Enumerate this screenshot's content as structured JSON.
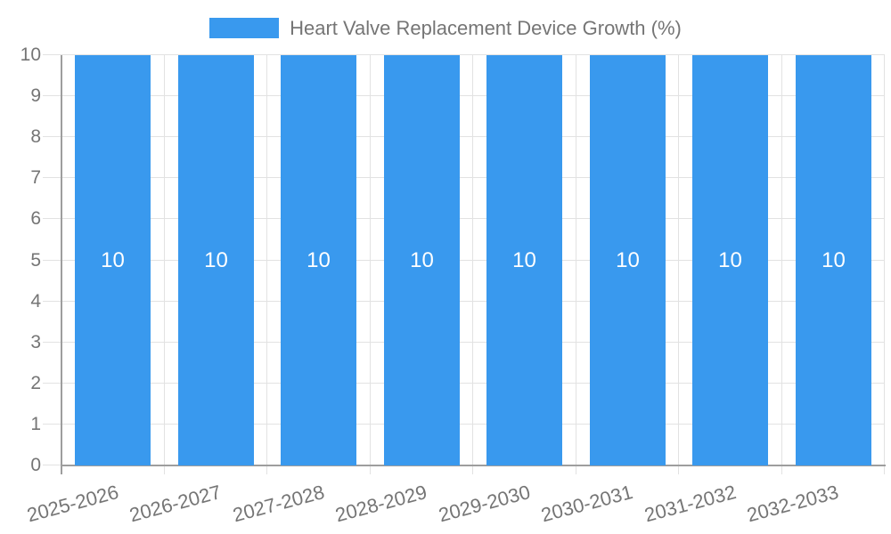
{
  "legend": {
    "label": "Heart Valve Replacement Device Growth (%)",
    "swatch_color": "#3999EE"
  },
  "chart_data": {
    "type": "bar",
    "title": "Heart Valve Replacement Device Growth (%)",
    "categories": [
      "2025-2026",
      "2026-2027",
      "2027-2028",
      "2028-2029",
      "2029-2030",
      "2030-2031",
      "2031-2032",
      "2032-2033"
    ],
    "series": [
      {
        "name": "Heart Valve Replacement Device Growth (%)",
        "values": [
          10,
          10,
          10,
          10,
          10,
          10,
          10,
          10
        ]
      }
    ],
    "bar_value_labels": [
      "10",
      "10",
      "10",
      "10",
      "10",
      "10",
      "10",
      "10"
    ],
    "xlabel": "",
    "ylabel": "",
    "ylim": [
      0,
      10
    ],
    "y_ticks": [
      0,
      1,
      2,
      3,
      4,
      5,
      6,
      7,
      8,
      9,
      10
    ],
    "grid": true,
    "legend_position": "top-center",
    "x_label_rotation_deg": -15,
    "colors": {
      "bar": "#3999EE",
      "grid": "#E2E2E2",
      "axis": "#9E9E9E",
      "text": "#757575",
      "bar_label": "#FFFFFF",
      "background": "#FFFFFF"
    }
  }
}
